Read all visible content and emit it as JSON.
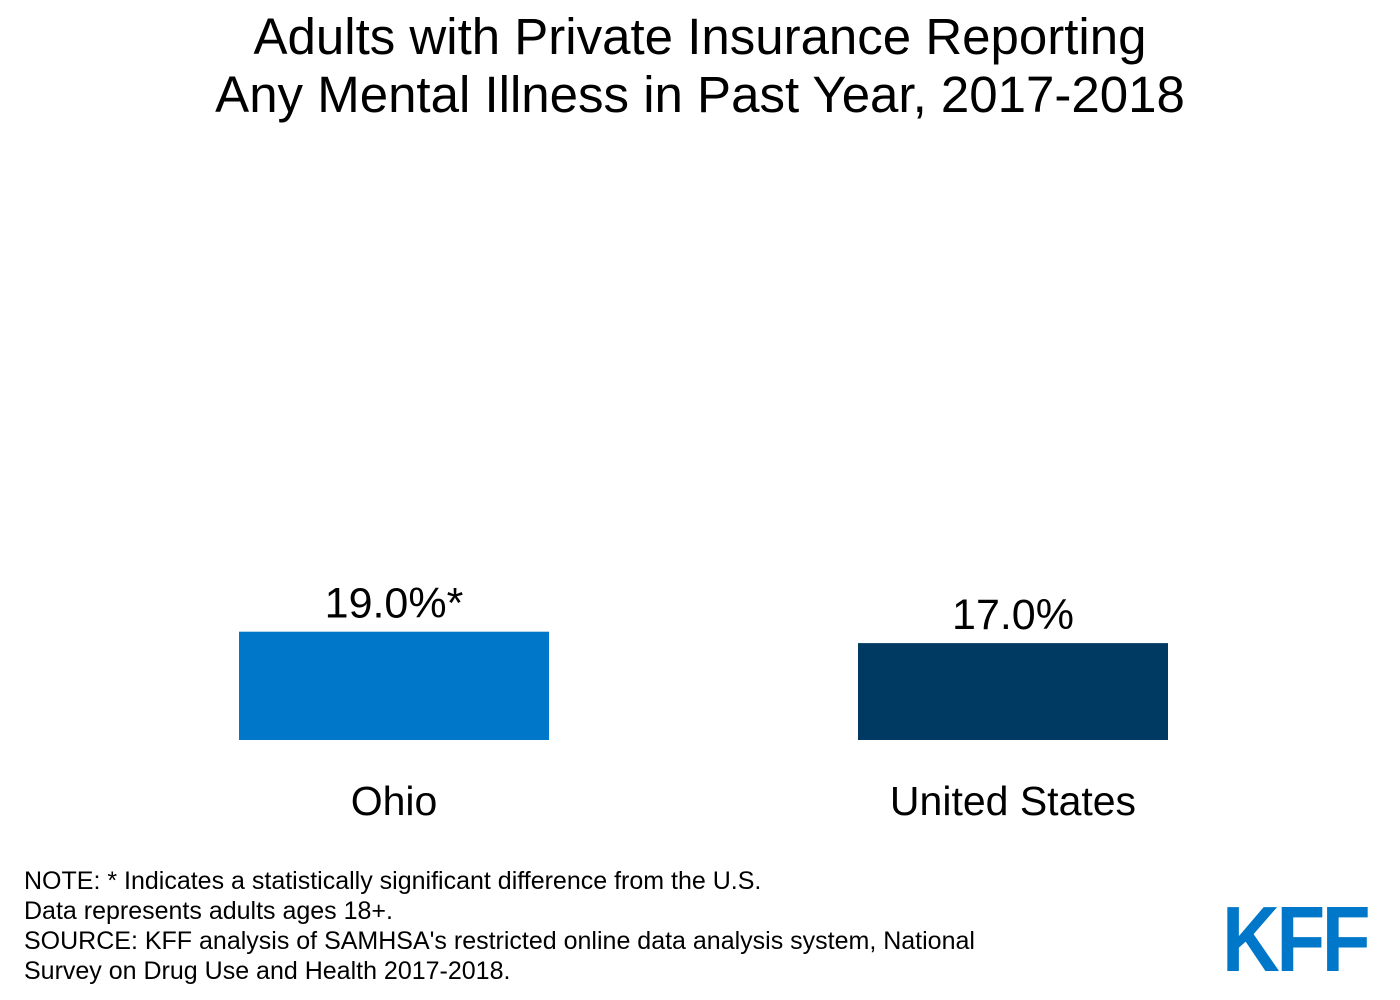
{
  "chart_data": {
    "type": "bar",
    "title": [
      "Adults with Private Insurance Reporting",
      "Any Mental Illness in Past Year, 2017-2018"
    ],
    "categories": [
      "Ohio",
      "United States"
    ],
    "values": [
      19.0,
      17.0
    ],
    "value_labels": [
      "19.0%*",
      "17.0%"
    ],
    "colors": [
      "#0077c8",
      "#003a63"
    ],
    "xlabel": "",
    "ylabel": "",
    "ylim": [
      0,
      100
    ],
    "grid": false,
    "legend": "none"
  },
  "notes": [
    "NOTE: * Indicates a statistically significant difference from the U.S.",
    "Data represents adults ages 18+.",
    "SOURCE: KFF analysis of SAMHSA's restricted online data analysis system, National",
    "Survey on Drug Use and Health 2017-2018."
  ],
  "logo": {
    "text": "KFF",
    "color": "#0077c8"
  }
}
